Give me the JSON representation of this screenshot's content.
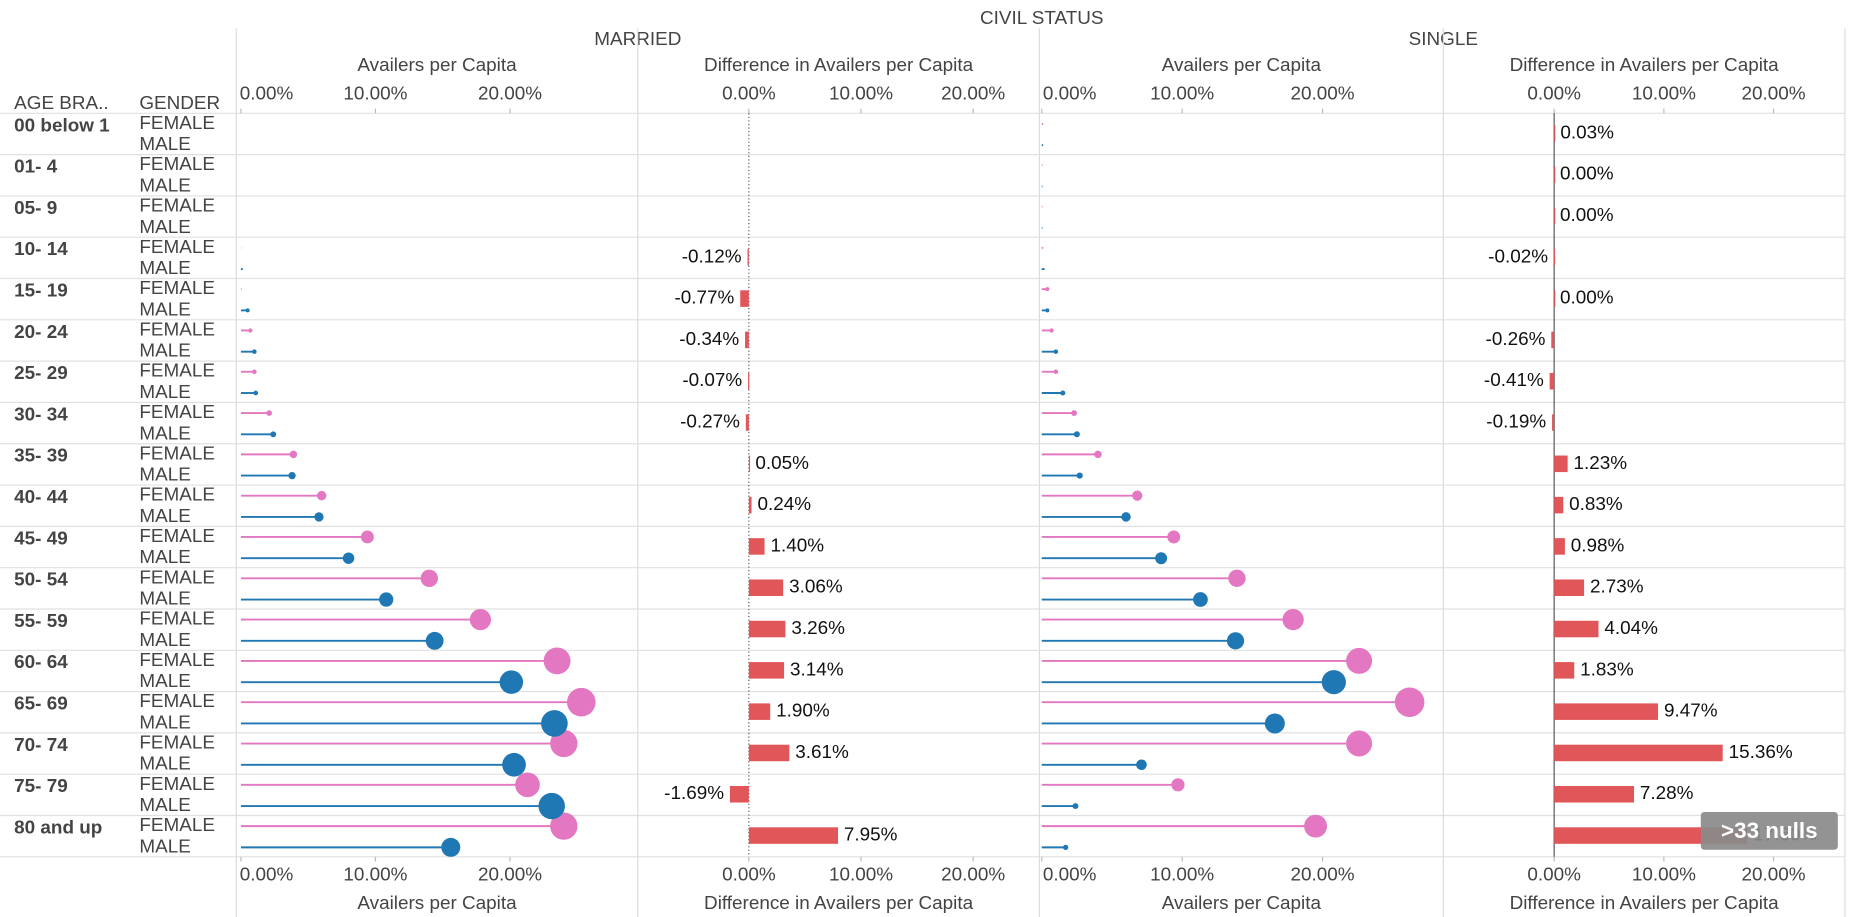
{
  "header": {
    "title": "CIVIL STATUS",
    "groups": [
      "MARRIED",
      "SINGLE"
    ],
    "row_headers": [
      "AGE BRA..",
      "GENDER"
    ]
  },
  "row_labels": [
    "00 below 1",
    "01- 4",
    "05- 9",
    "10- 14",
    "15- 19",
    "20- 24",
    "25- 29",
    "30- 34",
    "35- 39",
    "40- 44",
    "45- 49",
    "50- 54",
    "55- 59",
    "60- 64",
    "65- 69",
    "70- 74",
    "75- 79",
    "80 and up"
  ],
  "nulls_indicator": ">33 nulls",
  "chart_data": [
    {
      "type": "lollipop",
      "xlabel": "Availers per Capita",
      "xlim": [
        -0.35,
        29.5
      ],
      "xticks": [
        {
          "value": 0,
          "label": "0.00%"
        },
        {
          "value": 10,
          "label": "10.00%"
        },
        {
          "value": 20,
          "label": "20.00%"
        }
      ],
      "series": [
        {
          "name": "FEMALE",
          "color": "#e377c2",
          "values": [
            null,
            null,
            null,
            0.02,
            0.05,
            0.7,
            1.0,
            2.1,
            3.9,
            6.0,
            9.4,
            14.0,
            17.8,
            23.5,
            25.3,
            24.0,
            21.3,
            24.0
          ]
        },
        {
          "name": "MALE",
          "color": "#1f77b4",
          "values": [
            null,
            null,
            null,
            0.14,
            0.5,
            1.0,
            1.1,
            2.4,
            3.8,
            5.8,
            8.0,
            10.8,
            14.4,
            20.1,
            23.3,
            20.3,
            23.1,
            15.6
          ]
        }
      ]
    },
    {
      "type": "bar",
      "xlabel": "Difference in Availers per Capita",
      "xlim": [
        -9.9,
        25.9
      ],
      "color": "#e15759",
      "xticks": [
        {
          "value": 0,
          "label": "0.00%"
        },
        {
          "value": 10,
          "label": "10.00%"
        },
        {
          "value": 20,
          "label": "20.00%"
        }
      ],
      "values": [
        null,
        null,
        null,
        -0.12,
        -0.77,
        -0.34,
        -0.07,
        -0.27,
        0.05,
        0.24,
        1.4,
        3.06,
        3.26,
        3.14,
        1.9,
        3.61,
        -1.69,
        7.95
      ],
      "value_labels": [
        null,
        null,
        null,
        "-0.12%",
        "-0.77%",
        "-0.34%",
        "-0.07%",
        "-0.27%",
        "0.05%",
        "0.24%",
        "1.40%",
        "3.06%",
        "3.26%",
        "3.14%",
        "1.90%",
        "3.61%",
        "-1.69%",
        "7.95%"
      ]
    },
    {
      "type": "lollipop",
      "xlabel": "Availers per Capita",
      "xlim": [
        -0.17,
        28.6
      ],
      "xticks": [
        {
          "value": 0,
          "label": "0.00%"
        },
        {
          "value": 10,
          "label": "10.00%"
        },
        {
          "value": 20,
          "label": "20.00%"
        }
      ],
      "series": [
        {
          "name": "FEMALE",
          "color": "#e377c2",
          "values": [
            0.1,
            0.05,
            0.05,
            0.1,
            0.4,
            0.7,
            1.0,
            2.3,
            4.0,
            6.8,
            9.4,
            13.9,
            17.9,
            22.6,
            26.2,
            22.6,
            9.7,
            19.5
          ]
        },
        {
          "name": "MALE",
          "color": "#1f77b4",
          "values": [
            0.1,
            0.05,
            0.05,
            0.2,
            0.4,
            1.0,
            1.5,
            2.5,
            2.7,
            6.0,
            8.5,
            11.3,
            13.8,
            20.8,
            16.6,
            7.1,
            2.4,
            1.7
          ]
        }
      ]
    },
    {
      "type": "bar",
      "xlabel": "Difference in Availers per Capita",
      "xlim": [
        -10.1,
        26.5
      ],
      "color": "#e15759",
      "xticks": [
        {
          "value": 0,
          "label": "0.00%"
        },
        {
          "value": 10,
          "label": "10.00%"
        },
        {
          "value": 20,
          "label": "20.00%"
        }
      ],
      "values": [
        0.03,
        0.0,
        0.0,
        -0.02,
        0.0,
        -0.26,
        -0.41,
        -0.19,
        1.23,
        0.83,
        0.98,
        2.73,
        4.04,
        1.83,
        9.47,
        15.36,
        7.28,
        17.6
      ],
      "value_labels": [
        "0.03%",
        "0.00%",
        "0.00%",
        "-0.02%",
        "0.00%",
        "-0.26%",
        "-0.41%",
        "-0.19%",
        "1.23%",
        "0.83%",
        "0.98%",
        "2.73%",
        "4.04%",
        "1.83%",
        "9.47%",
        "15.36%",
        "7.28%",
        "17.60%"
      ]
    }
  ]
}
